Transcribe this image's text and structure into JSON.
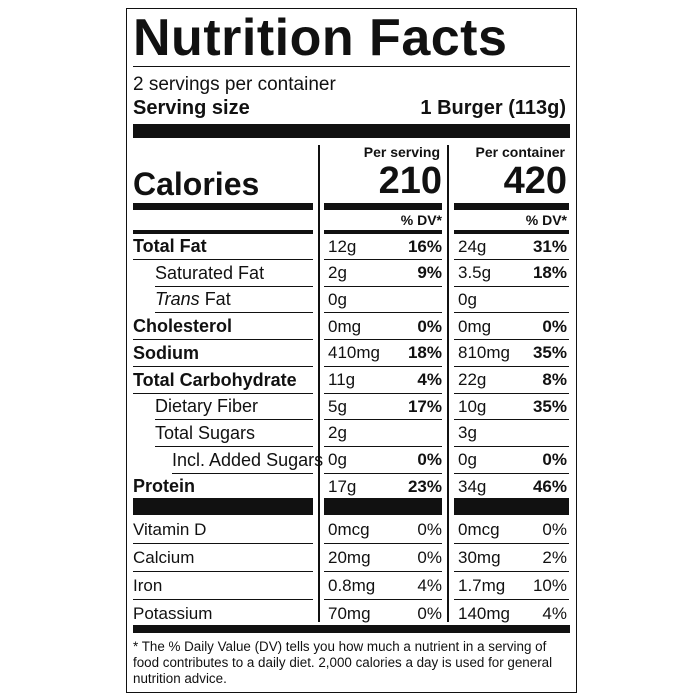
{
  "title": "Nutrition Facts",
  "servings": "2 servings per container",
  "serving_size_label": "Serving size",
  "serving_size": "1 Burger (113g)",
  "calories_label": "Calories",
  "columns": [
    {
      "header": "Per serving",
      "calories": "210",
      "dv_header": "% DV*"
    },
    {
      "header": "Per container",
      "calories": "420",
      "dv_header": "% DV*"
    }
  ],
  "nutrients": [
    {
      "name": "Total Fat",
      "bold": true,
      "indent": 0,
      "values": [
        [
          "12g",
          "16%"
        ],
        [
          "24g",
          "31%"
        ]
      ]
    },
    {
      "name": "Saturated Fat",
      "bold": false,
      "indent": 1,
      "values": [
        [
          "2g",
          "9%"
        ],
        [
          "3.5g",
          "18%"
        ]
      ]
    },
    {
      "italic_prefix": "Trans",
      "name": "Fat",
      "bold": false,
      "indent": 1,
      "values": [
        [
          "0g",
          null
        ],
        [
          "0g",
          null
        ]
      ]
    },
    {
      "name": "Cholesterol",
      "bold": true,
      "indent": 0,
      "values": [
        [
          "0mg",
          "0%"
        ],
        [
          "0mg",
          "0%"
        ]
      ]
    },
    {
      "name": "Sodium",
      "bold": true,
      "indent": 0,
      "values": [
        [
          "410mg",
          "18%"
        ],
        [
          "810mg",
          "35%"
        ]
      ]
    },
    {
      "name": "Total Carbohydrate",
      "bold": true,
      "indent": 0,
      "values": [
        [
          "11g",
          "4%"
        ],
        [
          "22g",
          "8%"
        ]
      ]
    },
    {
      "name": "Dietary Fiber",
      "bold": false,
      "indent": 1,
      "values": [
        [
          "5g",
          "17%"
        ],
        [
          "10g",
          "35%"
        ]
      ]
    },
    {
      "name": "Total Sugars",
      "bold": false,
      "indent": 1,
      "values": [
        [
          "2g",
          null
        ],
        [
          "3g",
          null
        ]
      ]
    },
    {
      "name": "Incl. Added Sugars",
      "bold": false,
      "indent": 2,
      "values": [
        [
          "0g",
          "0%"
        ],
        [
          "0g",
          "0%"
        ]
      ]
    },
    {
      "name": "Protein",
      "bold": true,
      "indent": 0,
      "values": [
        [
          "17g",
          "23%"
        ],
        [
          "34g",
          "46%"
        ]
      ]
    }
  ],
  "vitamins": [
    {
      "name": "Vitamin D",
      "values": [
        [
          "0mcg",
          "0%"
        ],
        [
          "0mcg",
          "0%"
        ]
      ]
    },
    {
      "name": "Calcium",
      "values": [
        [
          "20mg",
          "0%"
        ],
        [
          "30mg",
          "2%"
        ]
      ]
    },
    {
      "name": "Iron",
      "values": [
        [
          "0.8mg",
          "4%"
        ],
        [
          "1.7mg",
          "10%"
        ]
      ]
    },
    {
      "name": "Potassium",
      "values": [
        [
          "70mg",
          "0%"
        ],
        [
          "140mg",
          "4%"
        ]
      ]
    }
  ],
  "footnote": "* The % Daily Value (DV) tells you how much a nutrient in a serving of food contributes to a daily diet. 2,000 calories a day is used for general nutrition advice."
}
